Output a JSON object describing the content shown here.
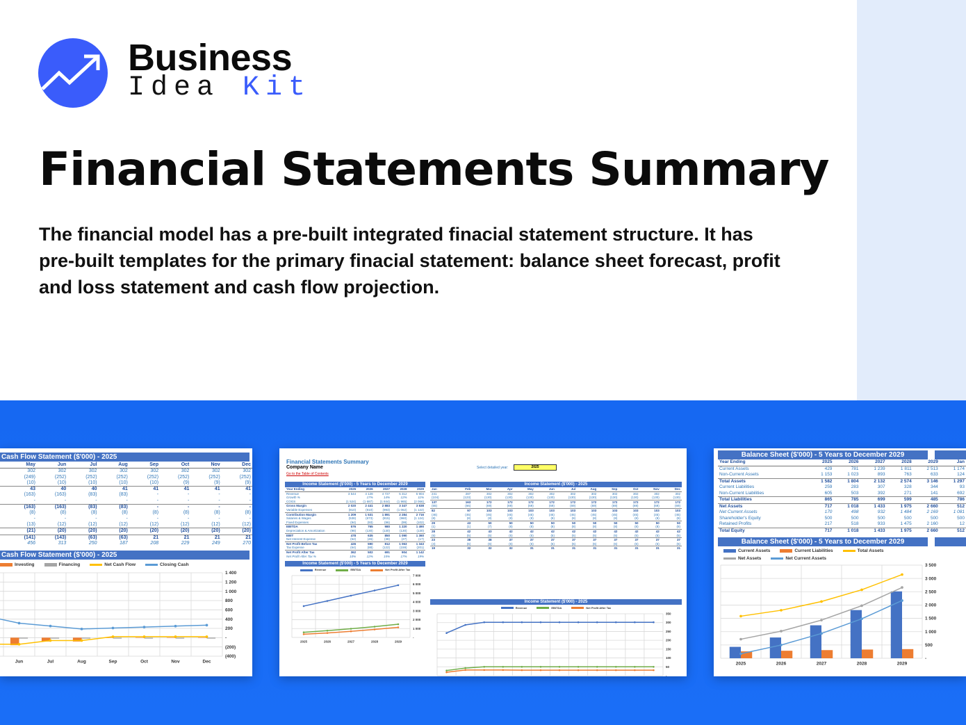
{
  "brand": {
    "line1": "Business",
    "line2a": "Idea",
    "line2b": "Kit",
    "accent": "#3a5cfb"
  },
  "title": "Financial Statements Summary",
  "description": "The financial model has a pre-built integrated finacial statement structure. It has pre-built templates for the primary finacial statement: balance sheet forecast, profit and loss statement and cash flow projection.",
  "cashflow": {
    "title": "Cash Flow Statement ($'000) - 2025",
    "months": [
      "May",
      "Jun",
      "Jul",
      "Aug",
      "Sep",
      "Oct",
      "Nov",
      "Dec"
    ],
    "rows": [
      {
        "s": "",
        "v": [
          "302",
          "302",
          "302",
          "302",
          "302",
          "302",
          "302",
          "302"
        ]
      },
      {
        "s": "",
        "v": [
          "(249)",
          "(252)",
          "(252)",
          "(252)",
          "(252)",
          "(252)",
          "(252)",
          "(252)"
        ]
      },
      {
        "s": "",
        "v": [
          "(10)",
          "(10)",
          "(10)",
          "(10)",
          "(10)",
          "(9)",
          "(9)",
          "(9)"
        ]
      },
      {
        "s": "b",
        "v": [
          "43",
          "40",
          "40",
          "41",
          "41",
          "41",
          "41",
          "41"
        ]
      },
      {
        "s": "",
        "v": [
          "(163)",
          "(163)",
          "(83)",
          "(83)",
          "-",
          "-",
          "-",
          "-"
        ]
      },
      {
        "s": "",
        "v": [
          "-",
          "-",
          "-",
          "-",
          "-",
          "-",
          "-",
          "-"
        ]
      },
      {
        "s": "b",
        "v": [
          "(163)",
          "(163)",
          "(83)",
          "(83)",
          "-",
          "-",
          "-",
          "-"
        ]
      },
      {
        "s": "",
        "v": [
          "(8)",
          "(8)",
          "(8)",
          "(8)",
          "(8)",
          "(8)",
          "(8)",
          "(8)"
        ]
      },
      {
        "s": "",
        "v": [
          "-",
          "-",
          "-",
          "-",
          "-",
          "-",
          "-",
          "-"
        ]
      },
      {
        "s": "",
        "v": [
          "(13)",
          "(12)",
          "(12)",
          "(12)",
          "(12)",
          "(12)",
          "(12)",
          "(12)"
        ]
      },
      {
        "s": "b",
        "v": [
          "(21)",
          "(20)",
          "(20)",
          "(20)",
          "(20)",
          "(20)",
          "(20)",
          "(20)"
        ]
      },
      {
        "s": "b",
        "v": [
          "(141)",
          "(143)",
          "(63)",
          "(63)",
          "21",
          "21",
          "21",
          "21"
        ]
      },
      {
        "s": "i",
        "v": [
          "456",
          "313",
          "250",
          "187",
          "208",
          "229",
          "249",
          "270"
        ]
      }
    ],
    "chart_title": "Cash Flow Statement ($'000) - 2025"
  },
  "income": {
    "summary_title": "Financial Statements Summary",
    "company": "Company Name",
    "toc_link": "Go to the Table of Contents",
    "select_label": "Select detailed year:",
    "select_value": "2025",
    "annual_title": "Income Statement ($'000) - 5 Years to December 2029",
    "monthly_title": "Income Statement ($'000) - 2025",
    "years": [
      "Year Ending",
      "2025",
      "2026",
      "2027",
      "2028",
      "2029"
    ],
    "annual_rows": [
      {
        "s": "",
        "v": [
          "Revenue",
          "3 544",
          "4 128",
          "4 727",
          "5 312",
          "5 904"
        ]
      },
      {
        "s": "i",
        "v": [
          "Growth %",
          "",
          "17%",
          "14%",
          "12%",
          "11%"
        ]
      },
      {
        "s": "",
        "v": [
          "COGS",
          "(1 524)",
          "(1 687)",
          "(1 844)",
          "(1 965)",
          "(2 066)"
        ]
      },
      {
        "s": "b",
        "v": [
          "Gross Margin",
          "2 020",
          "2 441",
          "2 883",
          "3 347",
          "3 838"
        ]
      },
      {
        "s": "",
        "v": [
          "Variable Expenses",
          "(810)",
          "(910)",
          "(993)",
          "(1 062)",
          "(1 122)"
        ]
      },
      {
        "s": "b",
        "v": [
          "Contribution Margin",
          "1 209",
          "1 531",
          "1 891",
          "2 284",
          "2 716"
        ]
      },
      {
        "s": "",
        "v": [
          "Salaries & Wages",
          "(538)",
          "(673)",
          "(815)",
          "(960)",
          "(1 124)"
        ]
      },
      {
        "s": "",
        "v": [
          "Fixed Expenses",
          "(94)",
          "(93)",
          "(96)",
          "(99)",
          "(102)"
        ]
      },
      {
        "s": "b",
        "v": [
          "EBITDA",
          "576",
          "765",
          "980",
          "1 220",
          "1 490"
        ]
      },
      {
        "s": "",
        "v": [
          "Depreciation & Amortization",
          "(98)",
          "(130)",
          "(130)",
          "(130)",
          "(130)"
        ]
      },
      {
        "s": "b",
        "v": [
          "EBIT",
          "478",
          "635",
          "850",
          "1 090",
          "1 360"
        ]
      },
      {
        "s": "",
        "v": [
          "Net Interest Expense",
          "(52)",
          "(45)",
          "(38)",
          "(27)",
          "(17)"
        ]
      },
      {
        "s": "b",
        "v": [
          "Net Profit Before Tax",
          "426",
          "590",
          "812",
          "1 063",
          "1 343"
        ]
      },
      {
        "s": "",
        "v": [
          "Tax Expense",
          "(64)",
          "(88)",
          "(122)",
          "(159)",
          "(201)"
        ]
      },
      {
        "s": "b",
        "v": [
          "Net Profit After Tax",
          "362",
          "502",
          "691",
          "904",
          "1 142"
        ]
      },
      {
        "s": "i",
        "v": [
          "Net Profit After Tax %",
          "10%",
          "12%",
          "15%",
          "17%",
          "19%"
        ]
      }
    ],
    "months": [
      "Jan",
      "Feb",
      "Mar",
      "Apr",
      "May",
      "Jun",
      "Jul",
      "Aug",
      "Sep",
      "Oct",
      "Nov",
      "Dec"
    ],
    "monthly_rows": [
      {
        "s": "",
        "v": [
          "241",
          "287",
          "302",
          "302",
          "302",
          "302",
          "302",
          "302",
          "302",
          "302",
          "302",
          "302"
        ]
      },
      {
        "s": "",
        "v": [
          "(104)",
          "(123)",
          "(130)",
          "(130)",
          "(130)",
          "(130)",
          "(130)",
          "(130)",
          "(130)",
          "(130)",
          "(130)",
          "(130)"
        ]
      },
      {
        "s": "b",
        "v": [
          "137",
          "163",
          "172",
          "172",
          "172",
          "172",
          "172",
          "172",
          "172",
          "172",
          "172",
          "172"
        ]
      },
      {
        "s": "",
        "v": [
          "(55)",
          "(66)",
          "(69)",
          "(69)",
          "(69)",
          "(69)",
          "(69)",
          "(69)",
          "(69)",
          "(69)",
          "(69)",
          "(69)"
        ]
      },
      {
        "s": "b",
        "v": [
          "82",
          "97",
          "103",
          "103",
          "103",
          "103",
          "103",
          "103",
          "103",
          "103",
          "103",
          "103"
        ]
      },
      {
        "s": "",
        "v": [
          "(46)",
          "(45)",
          "(45)",
          "(45)",
          "(45)",
          "(45)",
          "(45)",
          "(45)",
          "(45)",
          "(45)",
          "(45)",
          "(45)"
        ]
      },
      {
        "s": "",
        "v": [
          "(8)",
          "(8)",
          "(8)",
          "(8)",
          "(8)",
          "(8)",
          "(8)",
          "(8)",
          "(8)",
          "(8)",
          "(8)",
          "(8)"
        ]
      },
      {
        "s": "b",
        "v": [
          "29",
          "43",
          "50",
          "50",
          "50",
          "50",
          "50",
          "50",
          "50",
          "50",
          "50",
          "50"
        ]
      },
      {
        "s": "",
        "v": [
          "(1)",
          "(1)",
          "(7)",
          "(8)",
          "(8)",
          "(8)",
          "(8)",
          "(8)",
          "(8)",
          "(8)",
          "(8)",
          "(8)"
        ]
      },
      {
        "s": "b",
        "v": [
          "28",
          "42",
          "43",
          "42",
          "42",
          "42",
          "42",
          "42",
          "42",
          "42",
          "42",
          "42"
        ]
      },
      {
        "s": "",
        "v": [
          "(5)",
          "(5)",
          "(5)",
          "(5)",
          "(5)",
          "(5)",
          "(5)",
          "(5)",
          "(5)",
          "(5)",
          "(5)",
          "(5)"
        ]
      },
      {
        "s": "b",
        "v": [
          "23",
          "38",
          "38",
          "37",
          "37",
          "37",
          "37",
          "37",
          "37",
          "37",
          "37",
          "37"
        ]
      },
      {
        "s": "",
        "v": [
          "(4)",
          "(6)",
          "(6)",
          "(6)",
          "(6)",
          "(6)",
          "(6)",
          "(6)",
          "(6)",
          "(6)",
          "(6)",
          "(6)"
        ]
      },
      {
        "s": "b",
        "v": [
          "19",
          "32",
          "32",
          "32",
          "31",
          "31",
          "31",
          "31",
          "31",
          "31",
          "31",
          "31"
        ]
      }
    ]
  },
  "balance": {
    "title": "Balance Sheet ($'000) - 5 Years to December 2029",
    "header": [
      "Year Ending",
      "2025",
      "2026",
      "2027",
      "2028",
      "2029",
      "Jan"
    ],
    "rows": [
      {
        "s": "",
        "v": [
          "Current Assets",
          "429",
          "781",
          "1 239",
          "1 811",
          "2 513",
          "1 174"
        ]
      },
      {
        "s": "",
        "v": [
          "Non-Current Assets",
          "1 153",
          "1 023",
          "893",
          "763",
          "633",
          "124"
        ]
      },
      {
        "s": "b",
        "v": [
          "Total Assets",
          "1 582",
          "1 804",
          "2 132",
          "2 574",
          "3 146",
          "1 297"
        ]
      },
      {
        "s": "",
        "v": [
          "Current Liabilities",
          "259",
          "283",
          "307",
          "328",
          "344",
          "93"
        ]
      },
      {
        "s": "",
        "v": [
          "Non-Current Liabilities",
          "605",
          "503",
          "392",
          "271",
          "141",
          "692"
        ]
      },
      {
        "s": "b",
        "v": [
          "Total Liabilities",
          "865",
          "785",
          "699",
          "599",
          "485",
          "786"
        ]
      },
      {
        "s": "b",
        "v": [
          "Net Assets",
          "717",
          "1 018",
          "1 433",
          "1 975",
          "2 660",
          "512"
        ]
      },
      {
        "s": "i",
        "v": [
          "Net Current Assets",
          "170",
          "498",
          "932",
          "1 484",
          "2 169",
          "1 081"
        ]
      },
      {
        "s": "",
        "v": [
          "Shareholder's Equity",
          "500",
          "500",
          "500",
          "500",
          "500",
          "500"
        ]
      },
      {
        "s": "",
        "v": [
          "Retained Profits",
          "217",
          "518",
          "933",
          "1 475",
          "2 160",
          "12"
        ]
      },
      {
        "s": "b",
        "v": [
          "Total Equity",
          "717",
          "1 018",
          "1 433",
          "1 975",
          "2 660",
          "512"
        ]
      }
    ],
    "chart_title": "Balance Sheet ($'000) - 5 Years to December 2029"
  },
  "chart_data": [
    {
      "type": "bar",
      "title": "Cash Flow Statement ($'000) - 2025",
      "categories": [
        "May",
        "Jun",
        "Jul",
        "Aug",
        "Sep",
        "Oct",
        "Nov",
        "Dec"
      ],
      "ylim": [
        -400,
        1400
      ],
      "ticks": [
        1400,
        1200,
        1000,
        800,
        600,
        400,
        200,
        0,
        -200,
        -400
      ],
      "tick_labels": [
        "1 400",
        "1 200",
        "1 000",
        "800",
        "600",
        "400",
        "200",
        "-",
        "(200)",
        "(400)"
      ],
      "series": [
        {
          "name": "Investing",
          "kind": "bar",
          "color": "#ed7d31",
          "values": [
            -163,
            -163,
            -83,
            -83,
            0,
            0,
            0,
            0
          ]
        },
        {
          "name": "Financing",
          "kind": "bar",
          "color": "#a5a5a5",
          "values": [
            -21,
            -20,
            -20,
            -20,
            -20,
            -20,
            -20,
            -20
          ]
        },
        {
          "name": "Net Cash Flow",
          "kind": "line",
          "color": "#ffc000",
          "values": [
            -141,
            -143,
            -63,
            -63,
            21,
            21,
            21,
            21
          ]
        },
        {
          "name": "Closing Cash",
          "kind": "line",
          "color": "#5b9bd5",
          "values": [
            456,
            313,
            250,
            187,
            208,
            229,
            249,
            270
          ]
        }
      ]
    },
    {
      "type": "line",
      "title": "Income Statement ($'000) - 5 Years to December 2029",
      "categories": [
        "2025",
        "2026",
        "2027",
        "2028",
        "2029"
      ],
      "ylim": [
        0,
        7000
      ],
      "ticks": [
        7000,
        6000,
        5000,
        4000,
        3000,
        2000,
        1000,
        0
      ],
      "tick_labels": [
        "7 000",
        "6 000",
        "5 000",
        "4 000",
        "3 000",
        "2 000",
        "1 000",
        "-"
      ],
      "series": [
        {
          "name": "Revenue",
          "kind": "line",
          "color": "#4472c4",
          "values": [
            3544,
            4128,
            4727,
            5312,
            5904
          ]
        },
        {
          "name": "EBITDA",
          "kind": "line",
          "color": "#70ad47",
          "values": [
            576,
            765,
            980,
            1220,
            1490
          ]
        },
        {
          "name": "Net Profit After Tax",
          "kind": "line",
          "color": "#ed7d31",
          "values": [
            362,
            502,
            691,
            904,
            1142
          ]
        }
      ]
    },
    {
      "type": "line",
      "title": "Income Statement ($'000) - 2025",
      "categories": [
        "Jan",
        "Feb",
        "Mar",
        "Apr",
        "May",
        "Jun",
        "Jul",
        "Aug",
        "Sep",
        "Oct",
        "Nov",
        "Dec"
      ],
      "ylim": [
        0,
        350
      ],
      "ticks": [
        350,
        300,
        250,
        200,
        150,
        100,
        50,
        0
      ],
      "tick_labels": [
        "350",
        "300",
        "250",
        "200",
        "150",
        "100",
        "50",
        "-"
      ],
      "series": [
        {
          "name": "Revenue",
          "kind": "line",
          "color": "#4472c4",
          "values": [
            241,
            287,
            302,
            302,
            302,
            302,
            302,
            302,
            302,
            302,
            302,
            302
          ]
        },
        {
          "name": "EBITDA",
          "kind": "line",
          "color": "#70ad47",
          "values": [
            29,
            43,
            50,
            50,
            50,
            50,
            50,
            50,
            50,
            50,
            50,
            50
          ]
        },
        {
          "name": "Net Profit After Tax",
          "kind": "line",
          "color": "#ed7d31",
          "values": [
            19,
            32,
            32,
            32,
            31,
            31,
            31,
            31,
            31,
            31,
            31,
            31
          ]
        }
      ]
    },
    {
      "type": "bar",
      "title": "Balance Sheet ($'000) - 5 Years to December 2029",
      "categories": [
        "2025",
        "2026",
        "2027",
        "2028",
        "2029"
      ],
      "ylim": [
        0,
        3500
      ],
      "ticks": [
        3500,
        3000,
        2500,
        2000,
        1500,
        1000,
        500,
        0
      ],
      "tick_labels": [
        "3 500",
        "3 000",
        "2 500",
        "2 000",
        "1 500",
        "1 000",
        "500",
        "-"
      ],
      "series": [
        {
          "name": "Current Assets",
          "kind": "bar",
          "color": "#4472c4",
          "values": [
            429,
            781,
            1239,
            1811,
            2513
          ]
        },
        {
          "name": "Current Liabilities",
          "kind": "bar",
          "color": "#ed7d31",
          "values": [
            259,
            283,
            307,
            328,
            344
          ]
        },
        {
          "name": "Total Assets",
          "kind": "line",
          "color": "#ffc000",
          "values": [
            1582,
            1804,
            2132,
            2574,
            3146
          ]
        },
        {
          "name": "Net Assets",
          "kind": "line",
          "color": "#a5a5a5",
          "values": [
            717,
            1018,
            1433,
            1975,
            2660
          ]
        },
        {
          "name": "Net Current Assets",
          "kind": "line",
          "color": "#5b9bd5",
          "values": [
            170,
            498,
            932,
            1484,
            2169
          ]
        }
      ]
    }
  ]
}
